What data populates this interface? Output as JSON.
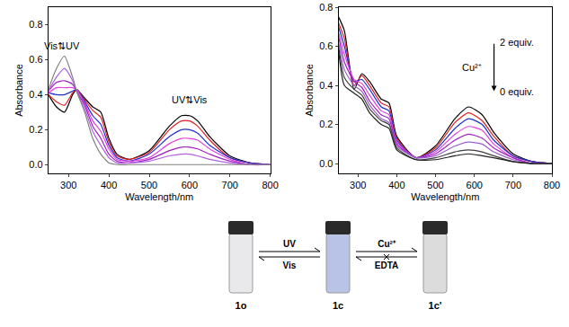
{
  "chart_data": [
    {
      "type": "line",
      "xlabel": "Wavelength/nm",
      "ylabel": "Absorbance",
      "xlim": [
        250,
        800
      ],
      "xticks": [
        300,
        400,
        500,
        600,
        700,
        800
      ],
      "ylim": [
        -0.05,
        0.9
      ],
      "yticks": [
        {
          "value": 0,
          "label": "0.0"
        },
        {
          "value": 0.2,
          "label": "0.2"
        },
        {
          "value": 0.4,
          "label": "0.4"
        },
        {
          "value": 0.6,
          "label": "0.6"
        },
        {
          "value": 0.8,
          "label": "0.8"
        }
      ],
      "x": [
        250,
        270,
        290,
        310,
        320,
        340,
        360,
        380,
        400,
        420,
        450,
        500,
        550,
        580,
        600,
        620,
        650,
        700,
        750,
        800
      ],
      "series": [
        {
          "color": "#000000",
          "values": [
            0.4,
            0.33,
            0.3,
            0.4,
            0.43,
            0.38,
            0.33,
            0.3,
            0.15,
            0.06,
            0.03,
            0.08,
            0.22,
            0.28,
            0.28,
            0.25,
            0.16,
            0.05,
            0.01,
            0.0
          ]
        },
        {
          "color": "#e02020",
          "values": [
            0.4,
            0.36,
            0.34,
            0.41,
            0.43,
            0.37,
            0.31,
            0.27,
            0.13,
            0.05,
            0.03,
            0.07,
            0.2,
            0.25,
            0.25,
            0.22,
            0.14,
            0.04,
            0.01,
            0.0
          ]
        },
        {
          "color": "#2030d0",
          "values": [
            0.41,
            0.4,
            0.4,
            0.42,
            0.43,
            0.36,
            0.28,
            0.23,
            0.11,
            0.04,
            0.02,
            0.06,
            0.16,
            0.2,
            0.2,
            0.18,
            0.11,
            0.04,
            0.01,
            0.0
          ]
        },
        {
          "color": "#e040e0",
          "values": [
            0.41,
            0.44,
            0.44,
            0.44,
            0.43,
            0.35,
            0.25,
            0.19,
            0.09,
            0.03,
            0.02,
            0.04,
            0.12,
            0.15,
            0.15,
            0.14,
            0.09,
            0.03,
            0.0,
            0.0
          ]
        },
        {
          "color": "#a020c0",
          "values": [
            0.42,
            0.47,
            0.48,
            0.46,
            0.42,
            0.34,
            0.22,
            0.15,
            0.06,
            0.02,
            0.01,
            0.03,
            0.08,
            0.1,
            0.1,
            0.09,
            0.06,
            0.02,
            0.0,
            0.0
          ]
        },
        {
          "color": "#b060e0",
          "values": [
            0.42,
            0.5,
            0.55,
            0.48,
            0.42,
            0.32,
            0.19,
            0.11,
            0.04,
            0.01,
            0.01,
            0.02,
            0.05,
            0.06,
            0.06,
            0.05,
            0.03,
            0.01,
            0.0,
            0.0
          ]
        },
        {
          "color": "#808080",
          "values": [
            0.43,
            0.55,
            0.62,
            0.5,
            0.42,
            0.3,
            0.15,
            0.06,
            0.01,
            0.0,
            0.0,
            0.0,
            0.0,
            0.0,
            0.0,
            0.0,
            0.0,
            0.0,
            0.0,
            0.0
          ]
        }
      ],
      "annotations": [
        {
          "text": "Vis⇅UV",
          "x": 283,
          "y": 0.68
        },
        {
          "text": "UV⇅Vis",
          "x": 600,
          "y": 0.37
        }
      ]
    },
    {
      "type": "line",
      "xlabel": "Wavelength/nm",
      "ylabel": "Absorbance",
      "xlim": [
        250,
        800
      ],
      "xticks": [
        300,
        400,
        500,
        600,
        700,
        800
      ],
      "ylim": [
        -0.05,
        0.8
      ],
      "yticks": [
        {
          "value": 0,
          "label": "0.0"
        },
        {
          "value": 0.2,
          "label": "0.2"
        },
        {
          "value": 0.4,
          "label": "0.4"
        },
        {
          "value": 0.6,
          "label": "0.6"
        },
        {
          "value": 0.8,
          "label": "0.8"
        }
      ],
      "x": [
        250,
        265,
        290,
        310,
        330,
        360,
        380,
        400,
        450,
        500,
        550,
        585,
        620,
        650,
        700,
        750,
        800
      ],
      "series": [
        {
          "color": "#000000",
          "values": [
            0.75,
            0.68,
            0.38,
            0.46,
            0.42,
            0.33,
            0.31,
            0.14,
            0.03,
            0.09,
            0.23,
            0.29,
            0.25,
            0.16,
            0.05,
            0.01,
            0.0
          ]
        },
        {
          "color": "#e0201c",
          "values": [
            0.72,
            0.64,
            0.4,
            0.45,
            0.4,
            0.31,
            0.29,
            0.13,
            0.03,
            0.08,
            0.21,
            0.26,
            0.22,
            0.14,
            0.04,
            0.01,
            0.0
          ]
        },
        {
          "color": "#1f2fd0",
          "values": [
            0.7,
            0.6,
            0.42,
            0.43,
            0.38,
            0.29,
            0.27,
            0.12,
            0.03,
            0.07,
            0.18,
            0.23,
            0.2,
            0.12,
            0.04,
            0.01,
            0.0
          ]
        },
        {
          "color": "#e040e0",
          "values": [
            0.67,
            0.56,
            0.43,
            0.41,
            0.35,
            0.27,
            0.25,
            0.11,
            0.03,
            0.06,
            0.15,
            0.19,
            0.17,
            0.1,
            0.03,
            0.0,
            0.0
          ]
        },
        {
          "color": "#a020c0",
          "values": [
            0.65,
            0.52,
            0.42,
            0.39,
            0.32,
            0.25,
            0.23,
            0.1,
            0.03,
            0.05,
            0.12,
            0.15,
            0.13,
            0.08,
            0.03,
            0.0,
            0.0
          ]
        },
        {
          "color": "#9b5fd0",
          "values": [
            0.62,
            0.48,
            0.4,
            0.37,
            0.3,
            0.23,
            0.21,
            0.09,
            0.03,
            0.04,
            0.09,
            0.11,
            0.1,
            0.06,
            0.02,
            0.0,
            0.0
          ]
        },
        {
          "color": "#404040",
          "values": [
            0.6,
            0.44,
            0.38,
            0.35,
            0.28,
            0.22,
            0.2,
            0.08,
            0.02,
            0.03,
            0.06,
            0.07,
            0.06,
            0.04,
            0.01,
            0.0,
            0.0
          ]
        },
        {
          "color": "#202020",
          "values": [
            0.58,
            0.4,
            0.36,
            0.33,
            0.26,
            0.2,
            0.18,
            0.07,
            0.02,
            0.02,
            0.04,
            0.05,
            0.04,
            0.03,
            0.01,
            0.0,
            0.0
          ]
        }
      ],
      "annotations": [
        {
          "text": "Cu²⁺",
          "x": 625,
          "y": 0.49
        },
        {
          "text": "2 equiv.",
          "x": 660,
          "y": 0.62
        },
        {
          "text": "0 equiv.",
          "x": 660,
          "y": 0.37
        }
      ]
    }
  ],
  "scheme": {
    "vials": [
      {
        "label": "1o",
        "color": "#e9e9ec"
      },
      {
        "label": "1c",
        "color": "#b9c3e6"
      },
      {
        "label": "1c'",
        "color": "#dcdcdc"
      }
    ],
    "steps": [
      {
        "forward": "UV",
        "backward": "Vis",
        "blocked": false
      },
      {
        "forward": "Cu²⁺",
        "backward": "EDTA",
        "blocked": true
      }
    ]
  }
}
